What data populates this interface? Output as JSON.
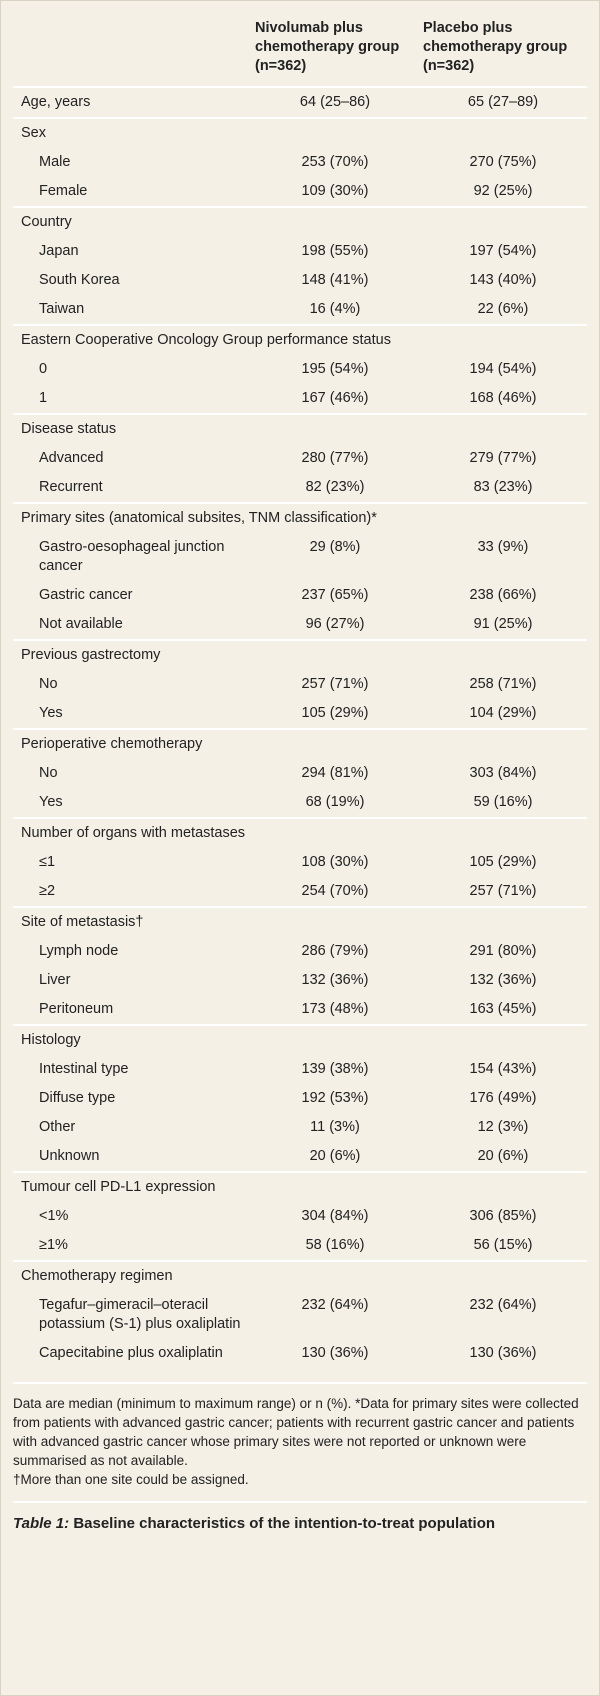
{
  "table": {
    "header": [
      "Nivolumab plus chemotherapy group (n=362)",
      "Placebo plus chemotherapy group (n=362)"
    ],
    "rows": [
      [
        "Age, years",
        "64 (25–86)",
        "65 (27–89)"
      ],
      [
        "Sex"
      ],
      [
        "Male",
        "253 (70%)",
        "270 (75%)"
      ],
      [
        "Female",
        "109 (30%)",
        "92 (25%)"
      ],
      [
        "Country"
      ],
      [
        "Japan",
        "198 (55%)",
        "197 (54%)"
      ],
      [
        "South Korea",
        "148 (41%)",
        "143 (40%)"
      ],
      [
        "Taiwan",
        "16 (4%)",
        "22 (6%)"
      ],
      [
        "Eastern Cooperative Oncology Group performance status"
      ],
      [
        "0",
        "195 (54%)",
        "194 (54%)"
      ],
      [
        "1",
        "167 (46%)",
        "168 (46%)"
      ],
      [
        "Disease status"
      ],
      [
        "Advanced",
        "280 (77%)",
        "279 (77%)"
      ],
      [
        "Recurrent",
        "82 (23%)",
        "83 (23%)"
      ],
      [
        "Primary sites (anatomical subsites, TNM classification)*"
      ],
      [
        "Gastro-oesophageal junction cancer",
        "29 (8%)",
        "33 (9%)"
      ],
      [
        "Gastric cancer",
        "237 (65%)",
        "238 (66%)"
      ],
      [
        "Not available",
        "96 (27%)",
        "91 (25%)"
      ],
      [
        "Previous gastrectomy"
      ],
      [
        "No",
        "257 (71%)",
        "258 (71%)"
      ],
      [
        "Yes",
        "105 (29%)",
        "104 (29%)"
      ],
      [
        "Perioperative chemotherapy"
      ],
      [
        "No",
        "294 (81%)",
        "303 (84%)"
      ],
      [
        "Yes",
        "68 (19%)",
        "59 (16%)"
      ],
      [
        "Number of organs with metastases"
      ],
      [
        "≤1",
        "108 (30%)",
        "105 (29%)"
      ],
      [
        "≥2",
        "254 (70%)",
        "257 (71%)"
      ],
      [
        "Site of metastasis†"
      ],
      [
        "Lymph node",
        "286 (79%)",
        "291 (80%)"
      ],
      [
        "Liver",
        "132 (36%)",
        "132 (36%)"
      ],
      [
        "Peritoneum",
        "173 (48%)",
        "163 (45%)"
      ],
      [
        "Histology"
      ],
      [
        "Intestinal type",
        "139 (38%)",
        "154 (43%)"
      ],
      [
        "Diffuse type",
        "192 (53%)",
        "176 (49%)"
      ],
      [
        "Other",
        "11 (3%)",
        "12 (3%)"
      ],
      [
        "Unknown",
        "20 (6%)",
        "20 (6%)"
      ],
      [
        "Tumour cell PD-L1 expression"
      ],
      [
        "<1%",
        "304 (84%)",
        "306 (85%)"
      ],
      [
        "≥1%",
        "58 (16%)",
        "56 (15%)"
      ],
      [
        "Chemotherapy regimen"
      ],
      [
        "Tegafur–gimeracil–oteracil potassium (S-1) plus oxaliplatin",
        "232 (64%)",
        "232 (64%)"
      ],
      [
        "Capecitabine plus oxaliplatin",
        "130 (36%)",
        "130 (36%)"
      ]
    ]
  },
  "footnotes": [
    "Data are median (minimum to maximum range) or n (%). *Data for primary sites were collected from patients with advanced gastric cancer; patients with recurrent gastric cancer and patients with advanced gastric cancer whose primary sites were not reported or unknown were summarised as not available.",
    "†More than one site could be assigned."
  ],
  "caption": {
    "label": "Table 1:",
    "text": "Baseline characteristics of the intention-to-treat population"
  }
}
